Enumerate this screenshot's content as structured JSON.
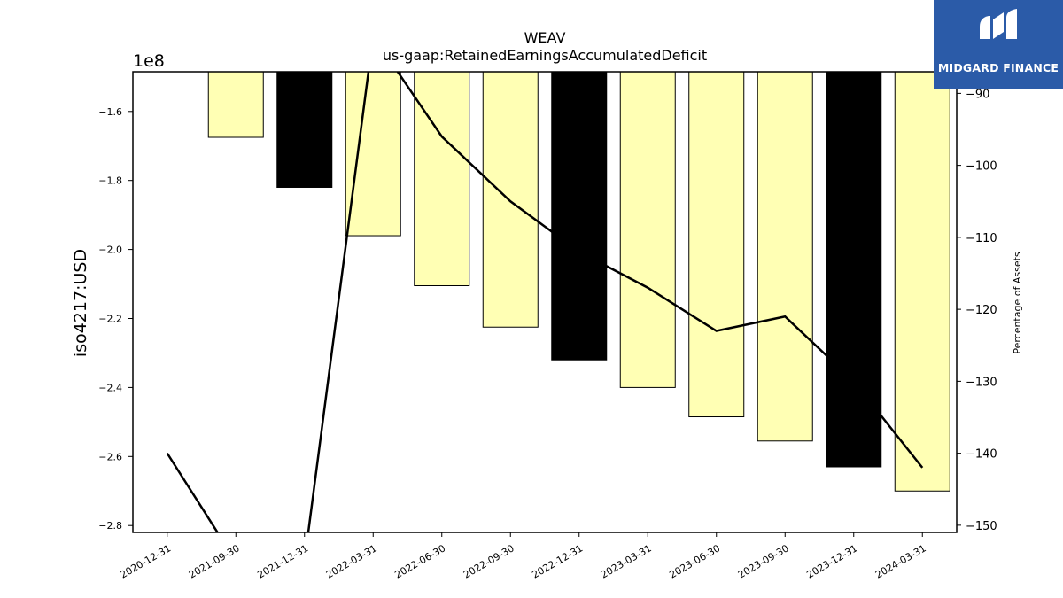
{
  "chart_data": {
    "type": "bar",
    "title": "WEAV",
    "subtitle": "us-gaap:RetainedEarningsAccumulatedDeficit",
    "ylabel": "iso4217:USD",
    "y_offset_label": "1e8",
    "y2label": "Percentage of Assets",
    "categories": [
      "2020-12-31",
      "2021-09-30",
      "2021-12-31",
      "2022-03-31",
      "2022-06-30",
      "2022-09-30",
      "2022-12-31",
      "2023-03-31",
      "2023-06-30",
      "2023-09-30",
      "2023-12-31",
      "2024-03-31"
    ],
    "series": [
      {
        "values": [
          null,
          -167500000,
          -182000000,
          -196000000,
          -210500000,
          -222500000,
          -232000000,
          -240000000,
          -248500000,
          -255500000,
          -263000000,
          -270000000
        ],
        "fill_colors": [
          "#ffffb4",
          "#ffffb4",
          "#000000",
          "#ffffb4",
          "#ffffb4",
          "#ffffb4",
          "#000000",
          "#ffffb4",
          "#ffffb4",
          "#ffffb4",
          "#000000",
          "#ffffb4"
        ]
      },
      {
        "type": "line",
        "axis": "right",
        "values": [
          -140,
          -155,
          -155,
          -82,
          -96,
          -105,
          -112,
          -117,
          -123,
          -121,
          -130,
          -142
        ]
      }
    ],
    "ylim": [
      -282000000,
      -148500000
    ],
    "y2lim": [
      -151,
      -87
    ],
    "yticks": [
      -1.6,
      -1.8,
      -2.0,
      -2.2,
      -2.4,
      -2.6,
      -2.8
    ],
    "y2ticks": [
      -90,
      -100,
      -110,
      -120,
      -130,
      -140,
      -150
    ],
    "colors": {
      "bar_light": "#ffffb4",
      "bar_dark": "#000000",
      "line": "#000000"
    }
  },
  "logo": {
    "text": "MIDGARD FINANCE",
    "background": "#2b5ba8"
  }
}
